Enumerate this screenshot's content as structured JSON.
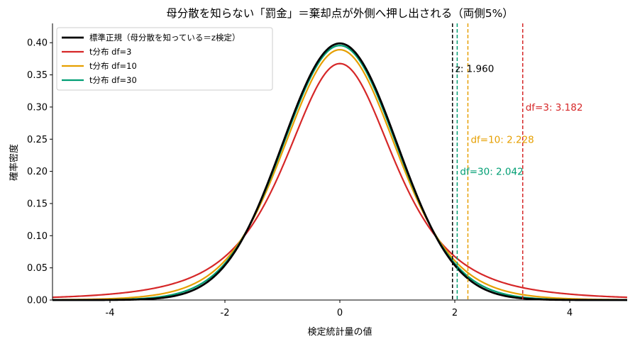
{
  "chart_data": {
    "type": "line",
    "title": "母分散を知らない「罰金」＝棄却点が外側へ押し出される（両側5%）",
    "xlabel": "検定統計量の値",
    "ylabel": "確率密度",
    "xlim": [
      -5,
      5
    ],
    "ylim": [
      0,
      0.43
    ],
    "xticks": [
      -4,
      -2,
      0,
      2,
      4
    ],
    "xtick_labels": [
      "-4",
      "-2",
      "0",
      "2",
      "4"
    ],
    "yticks": [
      0.0,
      0.05,
      0.1,
      0.15,
      0.2,
      0.25,
      0.3,
      0.35,
      0.4
    ],
    "ytick_labels": [
      "0.00",
      "0.05",
      "0.10",
      "0.15",
      "0.20",
      "0.25",
      "0.30",
      "0.35",
      "0.40"
    ],
    "grid": false,
    "legend_position": "top-left",
    "series": [
      {
        "name": "標準正規（母分散を知っている＝z検定）",
        "dist": "normal",
        "color": "#000000",
        "critical": 1.96
      },
      {
        "name": "t分布 df=3",
        "dist": "t",
        "df": 3,
        "color": "#d62728",
        "critical": 3.182
      },
      {
        "name": "t分布 df=10",
        "dist": "t",
        "df": 10,
        "color": "#e69f00",
        "critical": 2.228
      },
      {
        "name": "t分布 df=30",
        "dist": "t",
        "df": 30,
        "color": "#009e73",
        "critical": 2.042
      }
    ],
    "annotations": [
      {
        "text": "z: 1.960",
        "x": 1.96,
        "y": 0.36,
        "color": "#000000"
      },
      {
        "text": "df=3: 3.182",
        "x": 3.182,
        "y": 0.3,
        "color": "#d62728"
      },
      {
        "text": "df=10: 2.228",
        "x": 2.228,
        "y": 0.25,
        "color": "#e69f00"
      },
      {
        "text": "df=30: 2.042",
        "x": 2.042,
        "y": 0.2,
        "color": "#009e73"
      }
    ]
  }
}
